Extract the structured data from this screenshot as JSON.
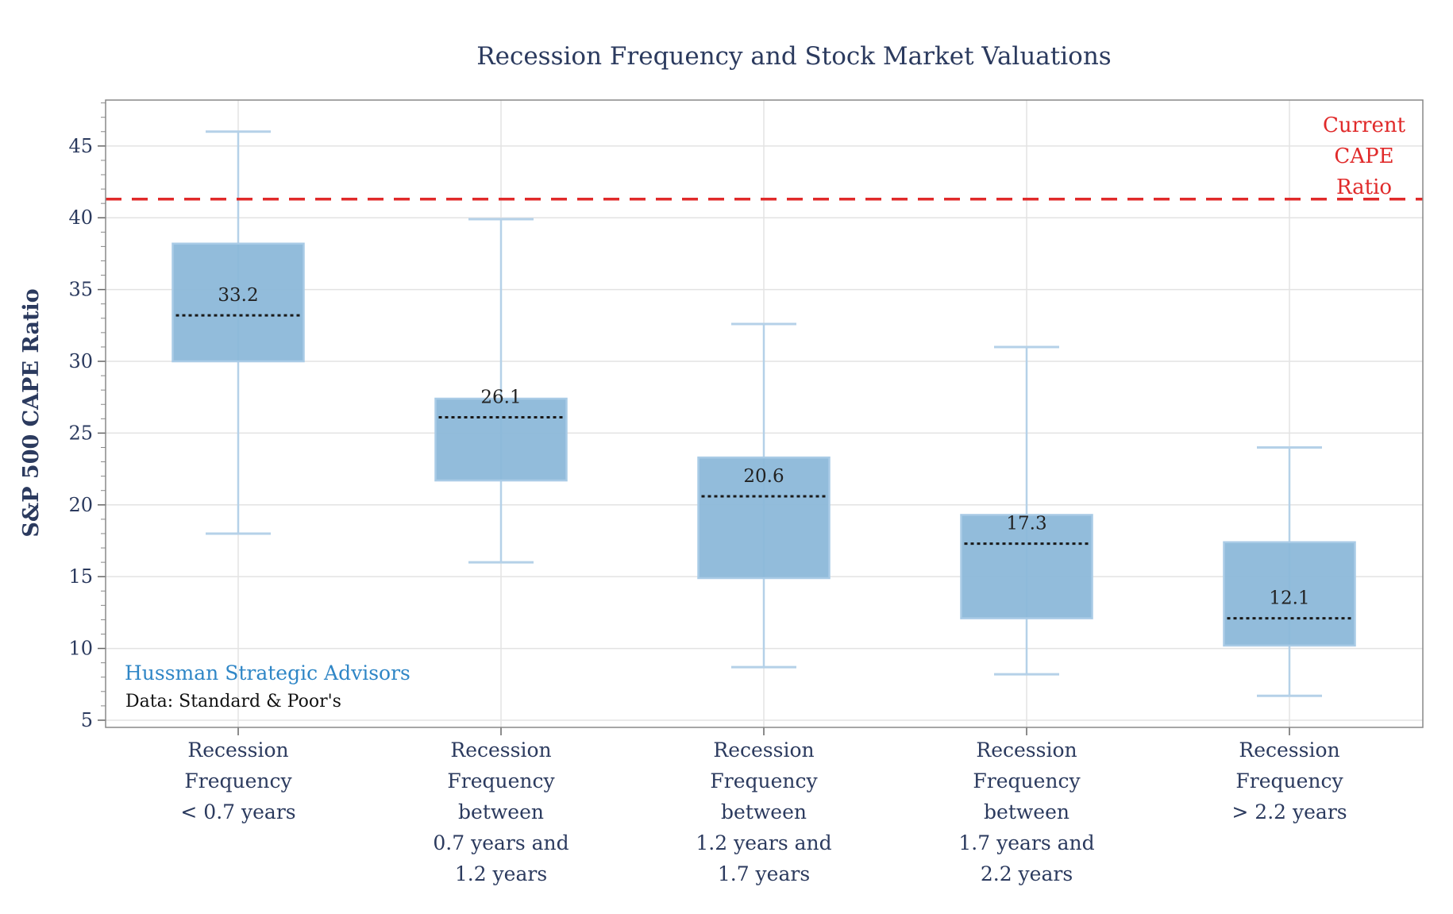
{
  "chart_data": {
    "type": "box",
    "title": "Recession Frequency and Stock Market Valuations",
    "xlabel": "",
    "ylabel": "S&P 500 CAPE Ratio",
    "ylim": [
      4.5,
      48.2
    ],
    "yticks": [
      5,
      10,
      15,
      20,
      25,
      30,
      35,
      40,
      45
    ],
    "grid": true,
    "categories": [
      [
        "Recession",
        "Frequency",
        "< 0.7 years"
      ],
      [
        "Recession",
        "Frequency",
        "between",
        "0.7 years and",
        "1.2 years"
      ],
      [
        "Recession",
        "Frequency",
        "between",
        "1.2 years and",
        "1.7 years"
      ],
      [
        "Recession",
        "Frequency",
        "between",
        "1.7 years and",
        "2.2 years"
      ],
      [
        "Recession",
        "Frequency",
        "> 2.2 years"
      ]
    ],
    "boxes": [
      {
        "whisker_low": 18.0,
        "q1": 30.0,
        "median": 33.2,
        "q3": 38.2,
        "whisker_high": 46.0,
        "label": "33.2"
      },
      {
        "whisker_low": 16.0,
        "q1": 21.7,
        "median": 26.1,
        "q3": 27.4,
        "whisker_high": 39.9,
        "label": "26.1"
      },
      {
        "whisker_low": 8.7,
        "q1": 14.9,
        "median": 20.6,
        "q3": 23.3,
        "whisker_high": 32.6,
        "label": "20.6"
      },
      {
        "whisker_low": 8.2,
        "q1": 12.1,
        "median": 17.3,
        "q3": 19.3,
        "whisker_high": 31.0,
        "label": "17.3"
      },
      {
        "whisker_low": 6.7,
        "q1": 10.2,
        "median": 12.1,
        "q3": 17.4,
        "whisker_high": 24.0,
        "label": "12.1"
      }
    ],
    "reference_line": {
      "value": 41.3,
      "label": [
        "Current",
        "CAPE",
        "Ratio"
      ],
      "color": "#e02a2a",
      "style": "dashed"
    },
    "colors": {
      "box_fill": "#8cb8d9",
      "box_edge": "#a9cbe6",
      "whisker": "#b5d1e8",
      "median": "#1a1a1a",
      "text": "#2b3a5e"
    }
  },
  "annotations": {
    "brand": "Hussman Strategic Advisors",
    "source": "Data: Standard & Poor's"
  }
}
